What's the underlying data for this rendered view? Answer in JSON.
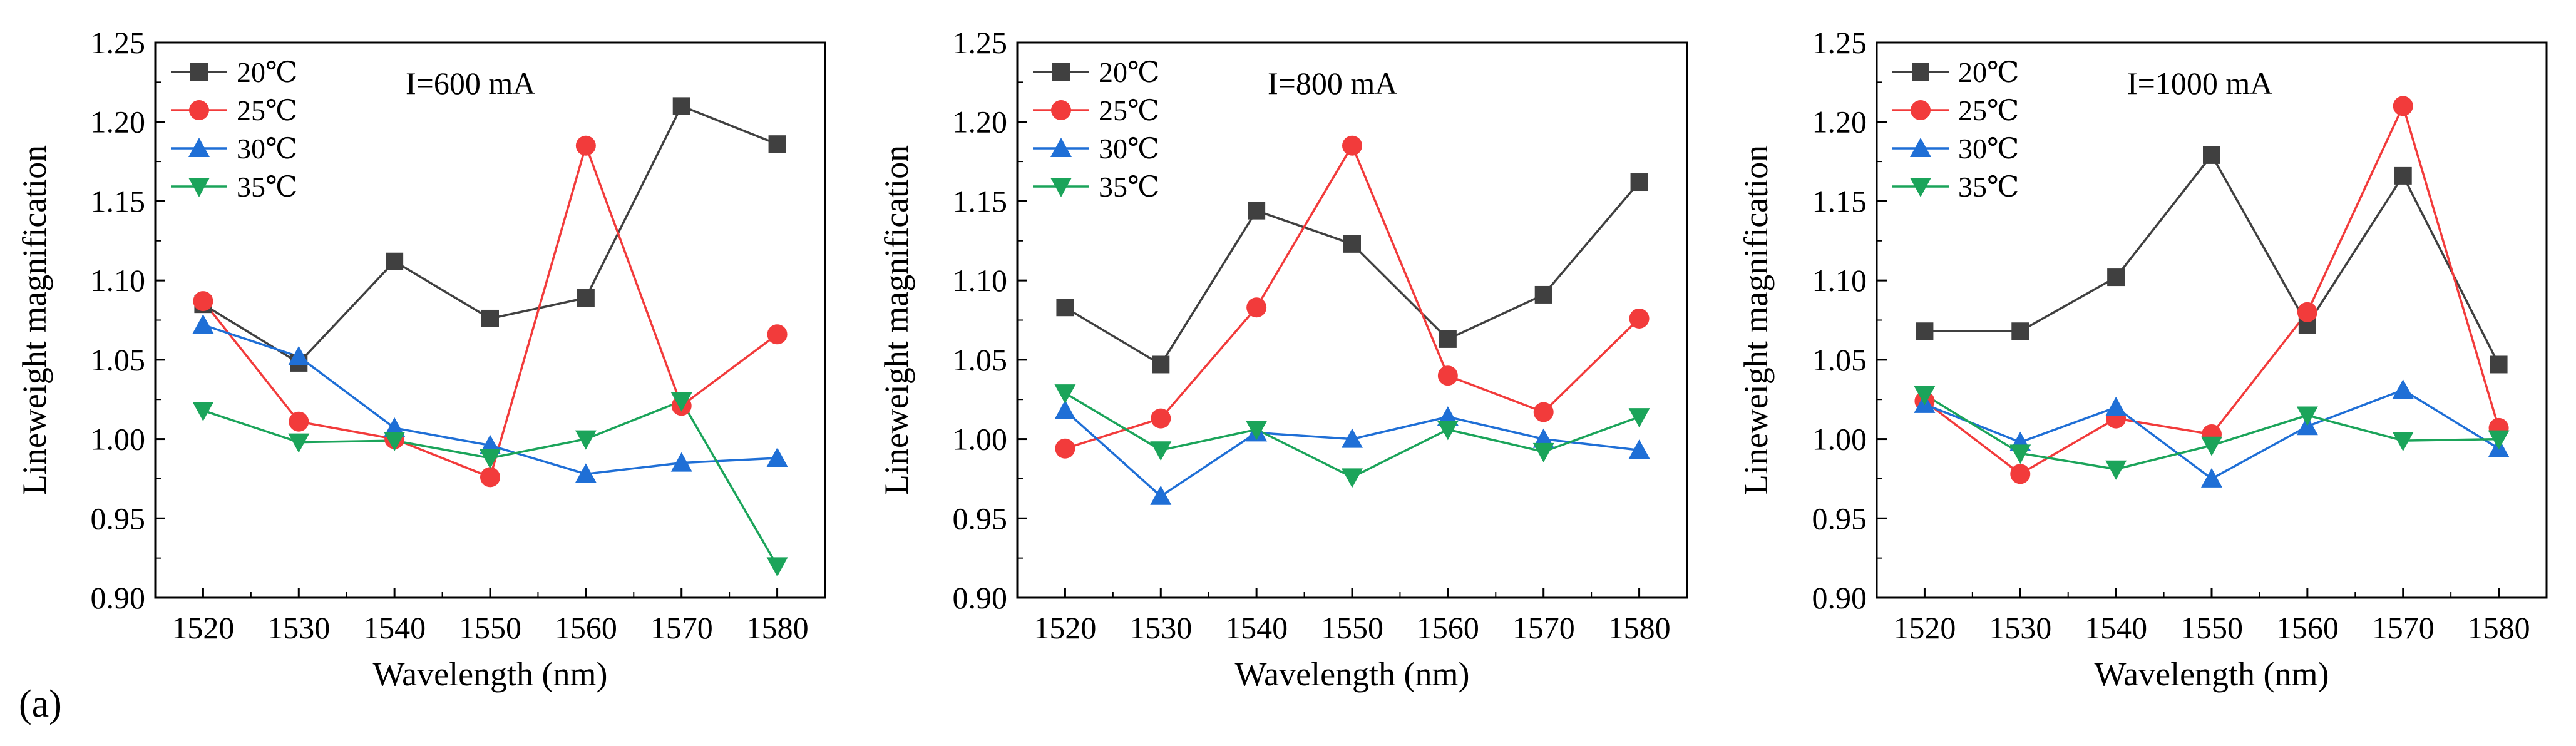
{
  "figure_label": "(a)",
  "chart_data": [
    {
      "type": "line",
      "title": "",
      "annotation": "I=600 mA",
      "xlabel": "Wavelength (nm)",
      "ylabel": "Lineweight magnification",
      "x": [
        1520,
        1530,
        1540,
        1550,
        1560,
        1570,
        1580
      ],
      "x_ticks": [
        "1520",
        "1530",
        "1540",
        "1550",
        "1560",
        "1570",
        "1580"
      ],
      "xlim": [
        1515,
        1585
      ],
      "ylim": [
        0.9,
        1.25
      ],
      "y_ticks": [
        "0.90",
        "0.95",
        "1.00",
        "1.05",
        "1.10",
        "1.15",
        "1.20",
        "1.25"
      ],
      "legend_position": "top-left",
      "series": [
        {
          "name": "20℃",
          "color": "#404040",
          "marker": "square",
          "values": [
            1.085,
            1.048,
            1.112,
            1.076,
            1.089,
            1.21,
            1.186
          ]
        },
        {
          "name": "25℃",
          "color": "#f23b3b",
          "marker": "circle",
          "values": [
            1.087,
            1.011,
            1.0,
            0.976,
            1.185,
            1.021,
            1.066
          ]
        },
        {
          "name": "30℃",
          "color": "#1f6fd6",
          "marker": "triangle-up",
          "values": [
            1.072,
            1.052,
            1.007,
            0.996,
            0.978,
            0.985,
            0.988
          ]
        },
        {
          "name": "35℃",
          "color": "#1ba45a",
          "marker": "triangle-down",
          "values": [
            1.018,
            0.998,
            0.999,
            0.988,
            1.0,
            1.024,
            0.92
          ]
        }
      ]
    },
    {
      "type": "line",
      "title": "",
      "annotation": "I=800 mA",
      "xlabel": "Wavelength (nm)",
      "ylabel": "Lineweight magnification",
      "x": [
        1520,
        1530,
        1540,
        1550,
        1560,
        1570,
        1580
      ],
      "x_ticks": [
        "1520",
        "1530",
        "1540",
        "1550",
        "1560",
        "1570",
        "1580"
      ],
      "xlim": [
        1515,
        1585
      ],
      "ylim": [
        0.9,
        1.25
      ],
      "y_ticks": [
        "0.90",
        "0.95",
        "1.00",
        "1.05",
        "1.10",
        "1.15",
        "1.20",
        "1.25"
      ],
      "legend_position": "top-left",
      "series": [
        {
          "name": "20℃",
          "color": "#404040",
          "marker": "square",
          "values": [
            1.083,
            1.047,
            1.144,
            1.123,
            1.063,
            1.091,
            1.162
          ]
        },
        {
          "name": "25℃",
          "color": "#f23b3b",
          "marker": "circle",
          "values": [
            0.994,
            1.013,
            1.083,
            1.185,
            1.04,
            1.017,
            1.076
          ]
        },
        {
          "name": "30℃",
          "color": "#1f6fd6",
          "marker": "triangle-up",
          "values": [
            1.018,
            0.964,
            1.004,
            1.0,
            1.014,
            1.0,
            0.993
          ]
        },
        {
          "name": "35℃",
          "color": "#1ba45a",
          "marker": "triangle-down",
          "values": [
            1.029,
            0.993,
            1.006,
            0.976,
            1.006,
            0.992,
            1.014
          ]
        }
      ]
    },
    {
      "type": "line",
      "title": "",
      "annotation": "I=1000 mA",
      "xlabel": "Wavelength (nm)",
      "ylabel": "Lineweight magnification",
      "x": [
        1520,
        1530,
        1540,
        1550,
        1560,
        1570,
        1580
      ],
      "x_ticks": [
        "1520",
        "1530",
        "1540",
        "1550",
        "1560",
        "1570",
        "1580"
      ],
      "xlim": [
        1515,
        1585
      ],
      "ylim": [
        0.9,
        1.25
      ],
      "y_ticks": [
        "0.90",
        "0.95",
        "1.00",
        "1.05",
        "1.10",
        "1.15",
        "1.20",
        "1.25"
      ],
      "legend_position": "top-left",
      "series": [
        {
          "name": "20℃",
          "color": "#404040",
          "marker": "square",
          "values": [
            1.068,
            1.068,
            1.102,
            1.179,
            1.072,
            1.166,
            1.047
          ]
        },
        {
          "name": "25℃",
          "color": "#f23b3b",
          "marker": "circle",
          "values": [
            1.024,
            0.978,
            1.013,
            1.003,
            1.08,
            1.21,
            1.007
          ]
        },
        {
          "name": "30℃",
          "color": "#1f6fd6",
          "marker": "triangle-up",
          "values": [
            1.022,
            0.998,
            1.02,
            0.975,
            1.008,
            1.031,
            0.994
          ]
        },
        {
          "name": "35℃",
          "color": "#1ba45a",
          "marker": "triangle-down",
          "values": [
            1.028,
            0.991,
            0.981,
            0.996,
            1.015,
            0.999,
            1.0
          ]
        }
      ]
    }
  ]
}
